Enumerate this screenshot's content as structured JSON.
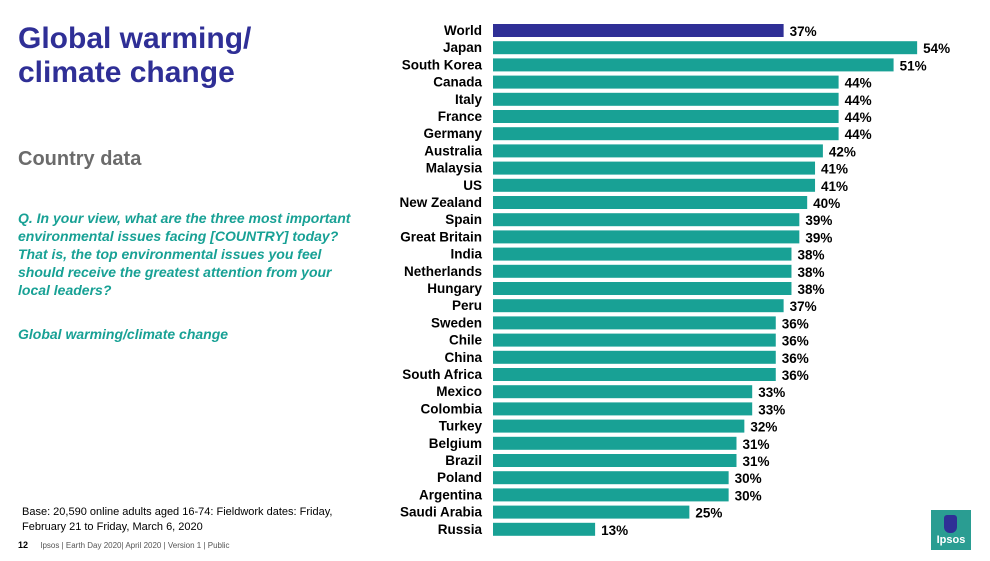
{
  "slide": {
    "title": "Global warming/ climate change",
    "subtitle": "Country data",
    "question": "Q. In your view, what are the three most important environmental issues facing [COUNTRY] today? That is, the top environmental issues you feel should receive the greatest attention from your local leaders?",
    "topic": "Global warming/climate change",
    "base_note": "Base: 20,590 online adults aged 16-74: Fieldwork dates: Friday, February 21 to Friday, March 6, 2020",
    "footer_page": "12",
    "footer_text": "Ipsos | Earth Day 2020| April 2020 | Version 1 | Public",
    "logo_text": "Ipsos"
  },
  "colors": {
    "highlight_bar": "#2f2f96",
    "bar": "#18a195",
    "title": "#2f2f96"
  },
  "chart_data": {
    "type": "bar",
    "orientation": "horizontal",
    "categories": [
      "World",
      "Japan",
      "South Korea",
      "Canada",
      "Italy",
      "France",
      "Germany",
      "Australia",
      "Malaysia",
      "US",
      "New Zealand",
      "Spain",
      "Great Britain",
      "India",
      "Netherlands",
      "Hungary",
      "Peru",
      "Sweden",
      "Chile",
      "China",
      "South Africa",
      "Mexico",
      "Colombia",
      "Turkey",
      "Belgium",
      "Brazil",
      "Poland",
      "Argentina",
      "Saudi Arabia",
      "Russia"
    ],
    "values": [
      37,
      54,
      51,
      44,
      44,
      44,
      44,
      42,
      41,
      41,
      40,
      39,
      39,
      38,
      38,
      38,
      37,
      36,
      36,
      36,
      36,
      33,
      33,
      32,
      31,
      31,
      30,
      30,
      25,
      13
    ],
    "value_labels": [
      "37%",
      "54%",
      "51%",
      "44%",
      "44%",
      "44%",
      "44%",
      "42%",
      "41%",
      "41%",
      "40%",
      "39%",
      "39%",
      "38%",
      "38%",
      "38%",
      "37%",
      "36%",
      "36%",
      "36%",
      "36%",
      "33%",
      "33%",
      "32%",
      "31%",
      "31%",
      "30%",
      "30%",
      "25%",
      "13%"
    ],
    "highlight_category": "World",
    "unit": "%",
    "xlim": [
      0,
      55
    ],
    "grid": false,
    "legend": "none"
  }
}
